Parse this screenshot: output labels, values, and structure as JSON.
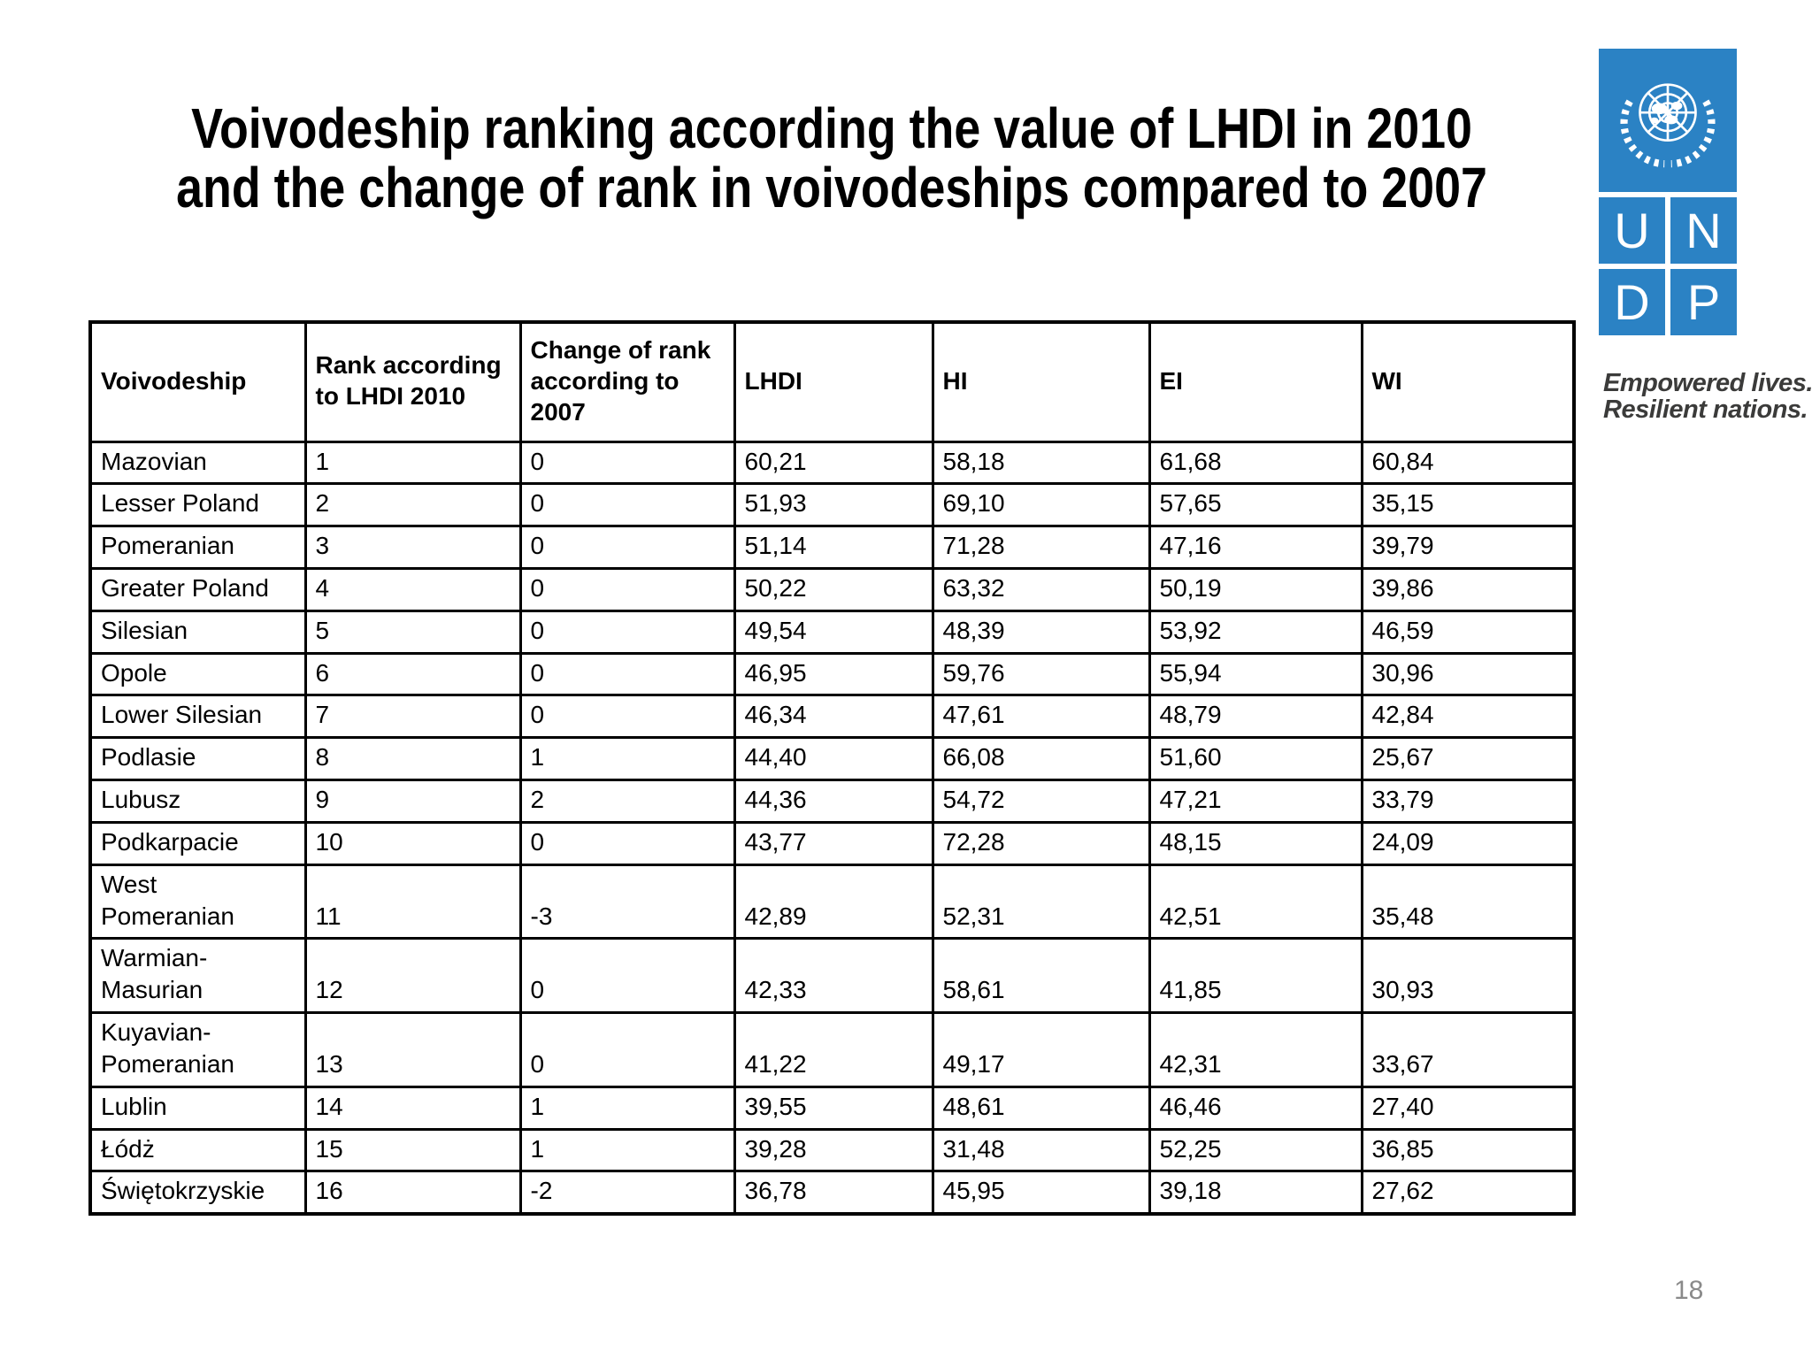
{
  "slide": {
    "title_line1": "Voivodeship ranking according the value of LHDI in 2010",
    "title_line2": "and the change of rank in voivodeships compared to 2007",
    "page_number": "18"
  },
  "logo": {
    "letters": [
      "U",
      "N",
      "D",
      "P"
    ],
    "tagline_line1": "Empowered lives.",
    "tagline_line2": "Resilient nations.",
    "brand_blue": "#2b82c4",
    "tagline_color": "#3b3b3a"
  },
  "table": {
    "headers": [
      "Voivodeship",
      "Rank according to LHDI 2010",
      "Change of rank according to 2007",
      "LHDI",
      "HI",
      "EI",
      "WI"
    ],
    "rows": [
      {
        "name": "Mazovian",
        "rank": "1",
        "change": "0",
        "lhdi": "60,21",
        "hi": "58,18",
        "ei": "61,68",
        "wi": "60,84"
      },
      {
        "name": "Lesser Poland",
        "rank": "2",
        "change": "0",
        "lhdi": "51,93",
        "hi": "69,10",
        "ei": "57,65",
        "wi": "35,15"
      },
      {
        "name": "Pomeranian",
        "rank": "3",
        "change": "0",
        "lhdi": "51,14",
        "hi": "71,28",
        "ei": "47,16",
        "wi": "39,79"
      },
      {
        "name": "Greater Poland",
        "rank": "4",
        "change": "0",
        "lhdi": "50,22",
        "hi": "63,32",
        "ei": "50,19",
        "wi": "39,86"
      },
      {
        "name": "Silesian",
        "rank": "5",
        "change": "0",
        "lhdi": "49,54",
        "hi": "48,39",
        "ei": "53,92",
        "wi": "46,59"
      },
      {
        "name": "Opole",
        "rank": "6",
        "change": "0",
        "lhdi": "46,95",
        "hi": "59,76",
        "ei": "55,94",
        "wi": "30,96"
      },
      {
        "name": "Lower Silesian",
        "rank": "7",
        "change": "0",
        "lhdi": "46,34",
        "hi": "47,61",
        "ei": "48,79",
        "wi": "42,84"
      },
      {
        "name": "Podlasie",
        "rank": "8",
        "change": "1",
        "lhdi": "44,40",
        "hi": "66,08",
        "ei": "51,60",
        "wi": "25,67"
      },
      {
        "name": "Lubusz",
        "rank": "9",
        "change": "2",
        "lhdi": "44,36",
        "hi": "54,72",
        "ei": "47,21",
        "wi": "33,79"
      },
      {
        "name": "Podkarpacie",
        "rank": "10",
        "change": "0",
        "lhdi": "43,77",
        "hi": "72,28",
        "ei": "48,15",
        "wi": "24,09"
      },
      {
        "name": "West\nPomeranian",
        "rank": "11",
        "change": "-3",
        "lhdi": "42,89",
        "hi": "52,31",
        "ei": "42,51",
        "wi": "35,48"
      },
      {
        "name": "Warmian-\nMasurian",
        "rank": "12",
        "change": "0",
        "lhdi": "42,33",
        "hi": "58,61",
        "ei": "41,85",
        "wi": "30,93"
      },
      {
        "name": "Kuyavian-\nPomeranian",
        "rank": "13",
        "change": "0",
        "lhdi": "41,22",
        "hi": "49,17",
        "ei": "42,31",
        "wi": "33,67"
      },
      {
        "name": "Lublin",
        "rank": "14",
        "change": "1",
        "lhdi": "39,55",
        "hi": "48,61",
        "ei": "46,46",
        "wi": "27,40"
      },
      {
        "name": "Łódż",
        "rank": "15",
        "change": "1",
        "lhdi": "39,28",
        "hi": "31,48",
        "ei": "52,25",
        "wi": "36,85"
      },
      {
        "name": "Świętokrzyskie",
        "rank": "16",
        "change": "-2",
        "lhdi": "36,78",
        "hi": "45,95",
        "ei": "39,18",
        "wi": "27,62"
      }
    ]
  }
}
